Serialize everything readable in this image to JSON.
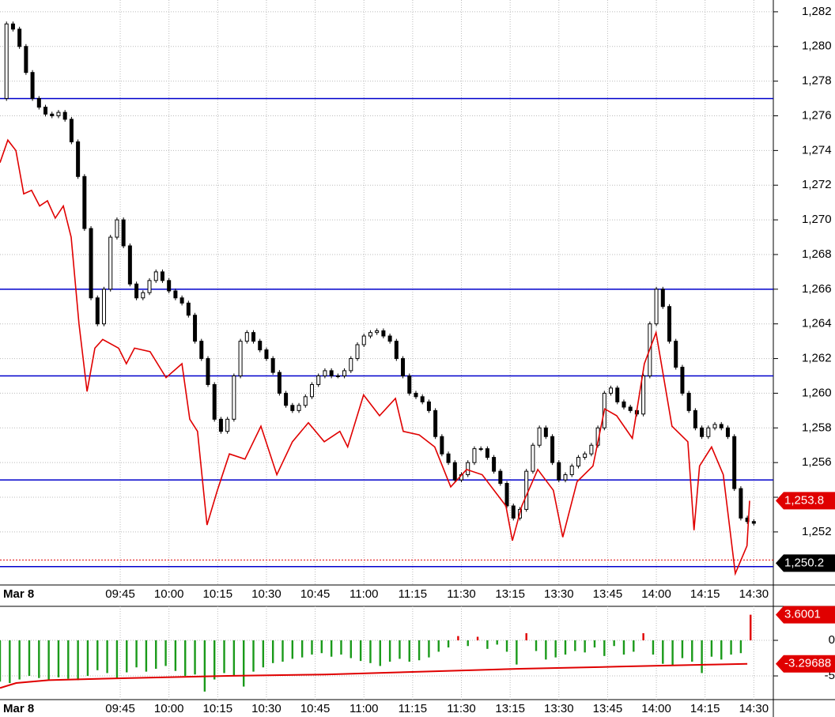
{
  "chart_data": [
    {
      "type": "candle-line",
      "date_label": "Mar 8",
      "xlim": [
        0,
        238
      ],
      "ylim": [
        1248.94,
        1282.68
      ],
      "grid": true,
      "xticks": [
        {
          "value": 37,
          "label": "09:45"
        },
        {
          "value": 52,
          "label": "10:00"
        },
        {
          "value": 67,
          "label": "10:15"
        },
        {
          "value": 82,
          "label": "10:30"
        },
        {
          "value": 97,
          "label": "10:45"
        },
        {
          "value": 112,
          "label": "11:00"
        },
        {
          "value": 127,
          "label": "11:15"
        },
        {
          "value": 142,
          "label": "11:30"
        },
        {
          "value": 157,
          "label": "13:15"
        },
        {
          "value": 172,
          "label": "13:30"
        },
        {
          "value": 187,
          "label": "13:45"
        },
        {
          "value": 202,
          "label": "14:00"
        },
        {
          "value": 217,
          "label": "14:15"
        },
        {
          "value": 232,
          "label": "14:30"
        }
      ],
      "yticks": [
        {
          "value": 1252,
          "label": "1,252"
        },
        {
          "value": 1254,
          "label": "1,254"
        },
        {
          "value": 1256,
          "label": "1,256"
        },
        {
          "value": 1258,
          "label": "1,258"
        },
        {
          "value": 1260,
          "label": "1,260"
        },
        {
          "value": 1262,
          "label": "1,262"
        },
        {
          "value": 1264,
          "label": "1,264"
        },
        {
          "value": 1266,
          "label": "1,266"
        },
        {
          "value": 1268,
          "label": "1,268"
        },
        {
          "value": 1270,
          "label": "1,270"
        },
        {
          "value": 1272,
          "label": "1,272"
        },
        {
          "value": 1274,
          "label": "1,274"
        },
        {
          "value": 1276,
          "label": "1,276"
        },
        {
          "value": 1278,
          "label": "1,278"
        },
        {
          "value": 1280,
          "label": "1,280"
        },
        {
          "value": 1282,
          "label": "1,282"
        }
      ],
      "levels": {
        "color": "#0000cc",
        "values": [
          1277,
          1266,
          1261,
          1255,
          1250
        ]
      },
      "series": [
        {
          "style": "candle",
          "color": "#000000",
          "x": [
            1,
            2,
            4,
            6,
            8,
            10,
            12,
            14,
            16,
            18,
            20,
            22,
            24,
            26,
            28,
            30,
            32,
            34,
            36,
            38,
            40,
            42,
            44,
            46,
            48,
            50,
            52,
            54,
            56,
            58,
            60,
            62,
            64,
            66,
            68,
            70,
            72,
            74,
            76,
            78,
            80,
            82,
            84,
            86,
            88,
            90,
            92,
            94,
            96,
            98,
            100,
            102,
            104,
            106,
            108,
            110,
            112,
            114,
            116,
            118,
            120,
            122,
            124,
            126,
            128,
            130,
            132,
            134,
            136,
            138,
            140,
            142,
            144,
            146,
            148,
            150,
            152,
            154,
            156,
            158,
            160,
            162,
            164,
            166,
            168,
            170,
            172,
            174,
            176,
            178,
            180,
            182,
            184,
            186,
            188,
            190,
            192,
            194,
            196,
            198,
            200,
            202,
            204,
            206,
            208,
            210,
            212,
            214,
            216,
            218,
            220,
            222,
            224,
            226,
            228,
            230,
            232
          ],
          "values": [
            1277.0,
            1281.3,
            1281.0,
            1280.0,
            1278.5,
            1277.0,
            1276.5,
            1276.1,
            1276.0,
            1276.2,
            1275.8,
            1274.5,
            1272.5,
            1269.5,
            1265.5,
            1264.0,
            1266.0,
            1269.0,
            1270.0,
            1268.5,
            1266.3,
            1265.5,
            1265.8,
            1266.5,
            1267.0,
            1266.5,
            1265.9,
            1265.5,
            1265.2,
            1264.5,
            1263.0,
            1262.0,
            1260.5,
            1258.5,
            1257.8,
            1258.5,
            1261.0,
            1263.0,
            1263.5,
            1263.0,
            1262.5,
            1262.0,
            1261.2,
            1260.0,
            1259.3,
            1259.0,
            1259.3,
            1259.8,
            1260.5,
            1261.0,
            1261.3,
            1261.0,
            1261.0,
            1261.3,
            1262.0,
            1262.8,
            1263.3,
            1263.5,
            1263.6,
            1263.3,
            1263.0,
            1262.0,
            1261.0,
            1260.0,
            1259.8,
            1259.5,
            1259.0,
            1257.5,
            1256.5,
            1256.0,
            1255.0,
            1255.3,
            1256.0,
            1256.8,
            1256.8,
            1256.3,
            1255.5,
            1254.8,
            1253.5,
            1252.8,
            1253.3,
            1255.5,
            1257.0,
            1258.0,
            1257.5,
            1256.0,
            1255.0,
            1255.3,
            1255.8,
            1256.3,
            1256.5,
            1257.0,
            1258.0,
            1260.0,
            1260.3,
            1259.5,
            1259.2,
            1259.0,
            1258.8,
            1261.0,
            1264.0,
            1266.0,
            1265.0,
            1263.0,
            1261.5,
            1260.0,
            1259.0,
            1258.0,
            1257.5,
            1258.0,
            1258.2,
            1258.0,
            1257.5,
            1254.5,
            1252.8,
            1252.6,
            1252.5
          ]
        },
        {
          "style": "line",
          "color": "#e00000",
          "x": [
            0,
            2.4,
            4.9,
            7.3,
            9.7,
            12.2,
            14.6,
            17,
            19.5,
            21.9,
            24.3,
            26.8,
            29.2,
            31.6,
            36.5,
            38.9,
            41.4,
            46.2,
            51.1,
            56,
            58.4,
            60.8,
            63.7,
            66.9,
            70.6,
            75.4,
            80.3,
            85.2,
            90,
            94.9,
            99.8,
            104.6,
            107,
            111.9,
            116.8,
            121.7,
            124.1,
            129,
            133.8,
            138.7,
            143.6,
            148.4,
            155.7,
            157.7,
            160.6,
            165.5,
            170.3,
            173.2,
            177.6,
            182.5,
            186.1,
            189.8,
            194.6,
            198.3,
            201.9,
            206.8,
            211.7,
            213.6,
            215.3,
            219,
            222.6,
            226.3,
            229.9,
            230.7
          ],
          "values": [
            1273.3,
            1274.6,
            1274.0,
            1271.5,
            1271.7,
            1270.8,
            1271.1,
            1270.1,
            1270.8,
            1269.0,
            1264.0,
            1260.1,
            1262.6,
            1263.1,
            1262.6,
            1261.7,
            1262.6,
            1262.4,
            1260.9,
            1261.7,
            1258.5,
            1257.8,
            1252.4,
            1254.4,
            1256.5,
            1256.2,
            1258.1,
            1255.3,
            1257.2,
            1258.3,
            1257.2,
            1257.8,
            1256.9,
            1259.9,
            1258.7,
            1259.7,
            1257.8,
            1257.6,
            1256.9,
            1254.6,
            1255.6,
            1255.3,
            1253.5,
            1251.5,
            1253.5,
            1255.6,
            1254.4,
            1251.7,
            1254.9,
            1255.8,
            1259.1,
            1258.7,
            1257.4,
            1261.7,
            1263.5,
            1258.1,
            1257.2,
            1252.1,
            1255.8,
            1256.9,
            1255.3,
            1249.6,
            1251.2,
            1253.8
          ]
        }
      ],
      "markers": [
        {
          "value": 1253.8,
          "label": "1,253.8",
          "color": "#e00000"
        },
        {
          "value": 1250.2,
          "label": "1,250.2",
          "color": "#000000"
        }
      ]
    },
    {
      "type": "bar",
      "xlim": [
        0,
        238
      ],
      "ylim": [
        -8.33,
        4.78
      ],
      "yticks": [
        0,
        -5
      ],
      "grid": true,
      "x": [
        0,
        3,
        6,
        9,
        12,
        15,
        18,
        21,
        24,
        27,
        30,
        33,
        36,
        39,
        42,
        45,
        48,
        51,
        54,
        57,
        60,
        63,
        66,
        69,
        72,
        75,
        78,
        81,
        84,
        87,
        90,
        93,
        96,
        99,
        102,
        105,
        108,
        111,
        114,
        117,
        120,
        123,
        126,
        129,
        132,
        135,
        138,
        141,
        144,
        147,
        150,
        153,
        156,
        159,
        162,
        165,
        168,
        171,
        174,
        177,
        180,
        183,
        186,
        189,
        192,
        195,
        198,
        201,
        204,
        207,
        210,
        213,
        216,
        219,
        222,
        225,
        228,
        231
      ],
      "values": [
        -5.8,
        -6.0,
        -5.5,
        -5.0,
        -5.3,
        -5.5,
        -5.2,
        -5.4,
        -5.6,
        -5.0,
        -4.2,
        -4.6,
        -5.3,
        -4.5,
        -3.8,
        -4.4,
        -4.0,
        -3.6,
        -4.3,
        -5.0,
        -4.8,
        -7.2,
        -5.5,
        -4.6,
        -5.0,
        -6.5,
        -4.4,
        -3.8,
        -3.2,
        -3.0,
        -2.6,
        -2.4,
        -2.0,
        -1.8,
        -2.3,
        -2.0,
        -2.5,
        -2.9,
        -3.2,
        -3.6,
        -3.0,
        -2.6,
        -3.0,
        -2.8,
        -2.4,
        -1.6,
        -1.0,
        0.6,
        -0.8,
        0.5,
        -1.2,
        -0.6,
        -1.6,
        -3.4,
        1.0,
        -1.5,
        -2.7,
        -2.4,
        -2.0,
        -1.5,
        -1.7,
        -1.0,
        -2.2,
        -0.8,
        -2.0,
        -1.6,
        1.0,
        -2.0,
        -3.3,
        -3.5,
        -2.5,
        -3.0,
        -4.6,
        -2.3,
        -2.7,
        -2.0,
        -1.8,
        3.6
      ],
      "up_color": "#e00000",
      "down_color": "#1a9a1a",
      "series": [
        {
          "color": "#e00000",
          "x": [
            0,
            5,
            15,
            40,
            70,
            100,
            130,
            160,
            190,
            220,
            230
          ],
          "values": [
            -6.7,
            -6.0,
            -5.6,
            -5.3,
            -5.0,
            -4.8,
            -4.4,
            -4.0,
            -3.7,
            -3.4,
            -3.29688
          ]
        }
      ],
      "markers": [
        {
          "value": 3.6001,
          "label": "3.6001",
          "color": "#e00000"
        },
        {
          "value": -3.29688,
          "label": "-3.29688",
          "color": "#e00000"
        }
      ]
    }
  ]
}
